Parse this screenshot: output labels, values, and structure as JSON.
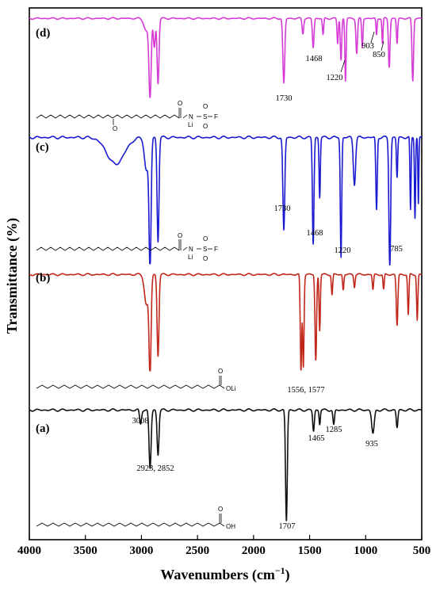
{
  "chart_data": {
    "type": "line",
    "xlabel": "Wavenumbers (cm",
    "xlabel_sup": "−1",
    "xlabel_end": ")",
    "ylabel": "Transmittance (%)",
    "xlim": [
      4000,
      500
    ],
    "x_ticks": [
      "4000",
      "3500",
      "3000",
      "2500",
      "2000",
      "1500",
      "1000",
      "500"
    ],
    "x_tick_values": [
      4000,
      3500,
      3000,
      2500,
      2000,
      1500,
      1000,
      500
    ],
    "grid": false,
    "series": [
      {
        "name": "(d)",
        "color": "#d63bd6",
        "baseline": 0.95,
        "bands": [
          {
            "x": 2955,
            "depth": 0.15,
            "width": 30
          },
          {
            "x": 2923,
            "depth": 0.92,
            "width": 14
          },
          {
            "x": 2885,
            "depth": 0.35,
            "width": 12
          },
          {
            "x": 2852,
            "depth": 0.78,
            "width": 12
          },
          {
            "x": 1730,
            "depth": 0.78,
            "width": 12
          },
          {
            "x": 1560,
            "depth": 0.18,
            "width": 10
          },
          {
            "x": 1468,
            "depth": 0.35,
            "width": 10
          },
          {
            "x": 1380,
            "depth": 0.2,
            "width": 8
          },
          {
            "x": 1250,
            "depth": 0.3,
            "width": 8
          },
          {
            "x": 1220,
            "depth": 0.5,
            "width": 9
          },
          {
            "x": 1180,
            "depth": 0.75,
            "width": 8
          },
          {
            "x": 1080,
            "depth": 0.42,
            "width": 10
          },
          {
            "x": 1030,
            "depth": 0.35,
            "width": 8
          },
          {
            "x": 903,
            "depth": 0.2,
            "width": 7
          },
          {
            "x": 850,
            "depth": 0.3,
            "width": 7
          },
          {
            "x": 790,
            "depth": 0.58,
            "width": 10
          },
          {
            "x": 720,
            "depth": 0.3,
            "width": 8
          },
          {
            "x": 580,
            "depth": 0.75,
            "width": 10
          }
        ]
      },
      {
        "name": "(c)",
        "color": "#1a1ad0",
        "baseline": 0.95,
        "bands": [
          {
            "x": 3230,
            "depth": 0.2,
            "width": 110
          },
          {
            "x": 2955,
            "depth": 0.25,
            "width": 25
          },
          {
            "x": 2923,
            "depth": 0.95,
            "width": 13
          },
          {
            "x": 2852,
            "depth": 0.78,
            "width": 12
          },
          {
            "x": 1730,
            "depth": 0.7,
            "width": 12
          },
          {
            "x": 1468,
            "depth": 0.8,
            "width": 10
          },
          {
            "x": 1410,
            "depth": 0.45,
            "width": 8
          },
          {
            "x": 1220,
            "depth": 0.9,
            "width": 9
          },
          {
            "x": 1100,
            "depth": 0.35,
            "width": 14
          },
          {
            "x": 903,
            "depth": 0.55,
            "width": 9
          },
          {
            "x": 785,
            "depth": 0.98,
            "width": 11
          },
          {
            "x": 720,
            "depth": 0.3,
            "width": 8
          },
          {
            "x": 600,
            "depth": 0.55,
            "width": 7
          },
          {
            "x": 560,
            "depth": 0.6,
            "width": 7
          },
          {
            "x": 530,
            "depth": 0.5,
            "width": 6
          }
        ]
      },
      {
        "name": "(b)",
        "color": "#c1271a",
        "baseline": 0.95,
        "bands": [
          {
            "x": 2955,
            "depth": 0.3,
            "width": 25
          },
          {
            "x": 2923,
            "depth": 0.95,
            "width": 13
          },
          {
            "x": 2852,
            "depth": 0.8,
            "width": 12
          },
          {
            "x": 1577,
            "depth": 0.95,
            "width": 9
          },
          {
            "x": 1556,
            "depth": 0.9,
            "width": 9
          },
          {
            "x": 1445,
            "depth": 0.85,
            "width": 10
          },
          {
            "x": 1410,
            "depth": 0.55,
            "width": 8
          },
          {
            "x": 1300,
            "depth": 0.2,
            "width": 8
          },
          {
            "x": 1200,
            "depth": 0.15,
            "width": 8
          },
          {
            "x": 1100,
            "depth": 0.12,
            "width": 8
          },
          {
            "x": 935,
            "depth": 0.15,
            "width": 8
          },
          {
            "x": 840,
            "depth": 0.15,
            "width": 8
          },
          {
            "x": 720,
            "depth": 0.5,
            "width": 10
          },
          {
            "x": 620,
            "depth": 0.4,
            "width": 8
          },
          {
            "x": 540,
            "depth": 0.45,
            "width": 8
          }
        ]
      },
      {
        "name": "(a)",
        "color": "#111111",
        "baseline": 0.95,
        "bands": [
          {
            "x": 3008,
            "depth": 0.12,
            "width": 12
          },
          {
            "x": 2923,
            "depth": 0.5,
            "width": 13
          },
          {
            "x": 2852,
            "depth": 0.38,
            "width": 12
          },
          {
            "x": 1707,
            "depth": 0.95,
            "width": 11
          },
          {
            "x": 1465,
            "depth": 0.18,
            "width": 10
          },
          {
            "x": 1410,
            "depth": 0.12,
            "width": 8
          },
          {
            "x": 1285,
            "depth": 0.13,
            "width": 10
          },
          {
            "x": 935,
            "depth": 0.2,
            "width": 16
          },
          {
            "x": 720,
            "depth": 0.15,
            "width": 10
          }
        ]
      }
    ],
    "panel_labels": [
      "(d)",
      "(c)",
      "(b)",
      "(a)"
    ],
    "annotations": {
      "d": [
        "1730",
        "1468",
        "1220",
        "903",
        "850"
      ],
      "c": [
        "1730",
        "1468",
        "1220",
        "785"
      ],
      "b": [
        "1556, 1577"
      ],
      "a": [
        "3008",
        "2923, 2852",
        "1465",
        "1285",
        "935",
        "1707"
      ]
    },
    "structures": {
      "d_labels": [
        "O",
        "O",
        "N",
        "S",
        "F",
        "O",
        "Li",
        "O"
      ],
      "c_labels": [
        "O",
        "N",
        "S",
        "F",
        "O",
        "Li",
        "O"
      ],
      "b_labels": [
        "O",
        "OLi"
      ],
      "a_labels": [
        "O",
        "OH"
      ]
    }
  }
}
